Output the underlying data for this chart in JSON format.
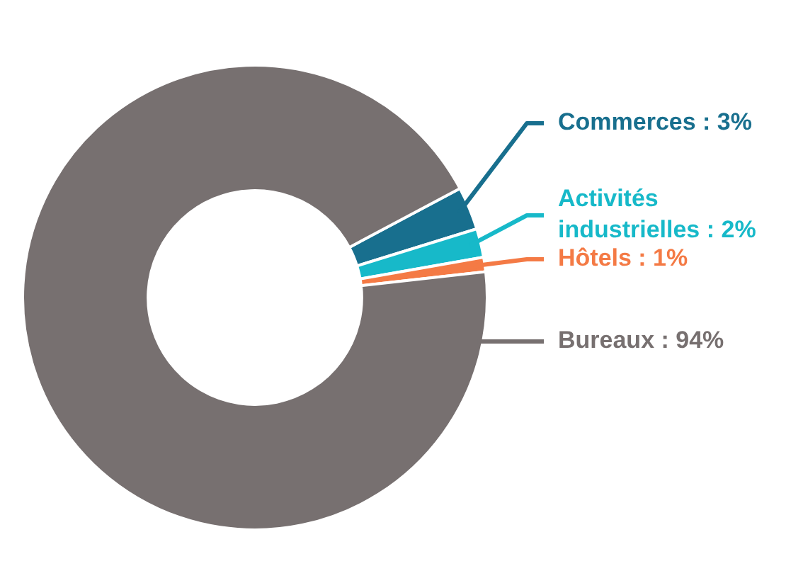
{
  "chart_data": {
    "type": "donut",
    "categories": [
      "Commerces",
      "Activités industrielles",
      "Hôtels",
      "Bureaux"
    ],
    "values": [
      3,
      2,
      1,
      94
    ],
    "value_labels": [
      "3%",
      "2%",
      "1%",
      "94%"
    ],
    "colors": [
      "#186f8e",
      "#17b9c9",
      "#f47a45",
      "#777070"
    ],
    "legend": false
  }
}
